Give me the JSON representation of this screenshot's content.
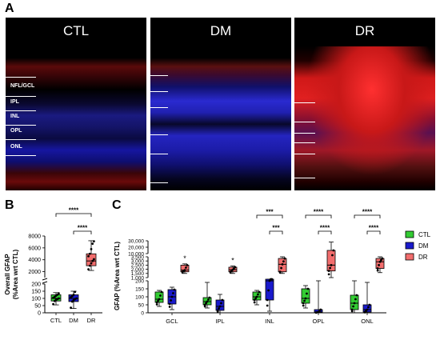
{
  "panel_a": {
    "letter": "A",
    "tiles": [
      {
        "title": "CTL",
        "layers": [
          "NFL/GCL",
          "IPL",
          "INL",
          "OPL",
          "ONL"
        ]
      },
      {
        "title": "DM"
      },
      {
        "title": "DR"
      }
    ]
  },
  "panel_b_letter": "B",
  "panel_c_letter": "C",
  "colors": {
    "CTL": "#33cc33",
    "DM": "#1a1acc",
    "DR": "#f26d6d"
  },
  "chart_data": [
    {
      "type": "box",
      "panel": "B",
      "ylabel": "Overall GFAP\n(%Area wrt CTL)",
      "categories": [
        "CTL",
        "DM",
        "DR"
      ],
      "axis_lower": {
        "range": [
          0,
          200
        ],
        "ticks": [
          "0",
          "50",
          "100",
          "150",
          "200"
        ]
      },
      "axis_upper": {
        "range": [
          1000,
          8000
        ],
        "ticks": [
          "2000",
          "4000",
          "6000",
          "8000"
        ]
      },
      "boxes": [
        {
          "group": "CTL",
          "min": 55,
          "q1": 82,
          "median": 100,
          "q3": 125,
          "max": 140,
          "points": [
            60,
            82,
            90,
            95,
            100,
            104,
            110,
            118,
            125,
            135
          ]
        },
        {
          "group": "DM",
          "min": 30,
          "q1": 78,
          "median": 100,
          "q3": 125,
          "max": 150,
          "points": [
            35,
            78,
            88,
            95,
            100,
            108,
            115,
            125,
            145
          ]
        },
        {
          "group": "DR",
          "min": 2200,
          "q1": 3000,
          "median": 3800,
          "q3": 5000,
          "max": 7200,
          "points": [
            2400,
            3000,
            3400,
            3800,
            4100,
            4600,
            5000,
            5800,
            6700,
            7100
          ]
        }
      ],
      "significance": [
        {
          "pair": [
            "CTL",
            "DR"
          ],
          "label": "****"
        },
        {
          "pair": [
            "DM",
            "DR"
          ],
          "label": "****"
        }
      ]
    },
    {
      "type": "box",
      "panel": "C",
      "ylabel": "GFAP (%Area wrt CTL)",
      "categories": [
        "GCL",
        "IPL",
        "INL",
        "OPL",
        "ONL"
      ],
      "axis_lower": {
        "range": [
          0,
          200
        ],
        "ticks": [
          "0",
          "50",
          "100",
          "150",
          "200"
        ]
      },
      "axis_mid": {
        "range": [
          1000,
          3500
        ],
        "ticks": [
          "1,000",
          "1,500",
          "2,000",
          "2,500",
          "3,000",
          "3,500"
        ]
      },
      "axis_upper": {
        "range": [
          10000,
          30000
        ],
        "ticks": [
          "10,000",
          "20,000",
          "30,000"
        ]
      },
      "legend": [
        "CTL",
        "DM",
        "DR"
      ],
      "legend_position": "right",
      "boxes": [
        {
          "layer": "GCL",
          "group": "CTL",
          "min": 40,
          "q1": 65,
          "median": 85,
          "q3": 130,
          "max": 140
        },
        {
          "layer": "GCL",
          "group": "DM",
          "min": 20,
          "q1": 55,
          "median": 100,
          "q3": 145,
          "max": 160
        },
        {
          "layer": "GCL",
          "group": "DR",
          "min": 1500,
          "q1": 1700,
          "median": 1900,
          "q3": 2500,
          "max": 2650,
          "outlier_label": "*"
        },
        {
          "layer": "IPL",
          "group": "CTL",
          "min": 30,
          "q1": 50,
          "median": 70,
          "q3": 95,
          "max": 190
        },
        {
          "layer": "IPL",
          "group": "DM",
          "min": 0,
          "q1": 15,
          "median": 40,
          "q3": 80,
          "max": 115
        },
        {
          "layer": "IPL",
          "group": "DR",
          "min": 1500,
          "q1": 1700,
          "median": 1950,
          "q3": 2250,
          "max": 2400,
          "outlier_label": "*"
        },
        {
          "layer": "INL",
          "group": "CTL",
          "min": 50,
          "q1": 80,
          "median": 100,
          "q3": 130,
          "max": 140
        },
        {
          "layer": "INL",
          "group": "DM",
          "min": 10,
          "q1": 80,
          "median": 200,
          "q3": 230,
          "max": 250
        },
        {
          "layer": "INL",
          "group": "DR",
          "min": 1500,
          "q1": 1700,
          "median": 2600,
          "q3": 3300,
          "max": 3500
        },
        {
          "layer": "OPL",
          "group": "CTL",
          "min": 30,
          "q1": 60,
          "median": 90,
          "q3": 150,
          "max": 170
        },
        {
          "layer": "OPL",
          "group": "DM",
          "min": 0,
          "q1": 2,
          "median": 5,
          "q3": 20,
          "max": 200
        },
        {
          "layer": "OPL",
          "group": "DR",
          "min": 1000,
          "q1": 1800,
          "median": 2500,
          "q3": 15000,
          "max": 28000
        },
        {
          "layer": "ONL",
          "group": "CTL",
          "min": 0,
          "q1": 20,
          "median": 60,
          "q3": 110,
          "max": 200
        },
        {
          "layer": "ONL",
          "group": "DM",
          "min": 0,
          "q1": 5,
          "median": 20,
          "q3": 50,
          "max": 190
        },
        {
          "layer": "ONL",
          "group": "DR",
          "min": 1600,
          "q1": 2100,
          "median": 2900,
          "q3": 3300,
          "max": 3500
        }
      ],
      "significance": [
        {
          "layer": "INL",
          "pair": [
            "CTL",
            "DR"
          ],
          "label": "***"
        },
        {
          "layer": "INL",
          "pair": [
            "DM",
            "DR"
          ],
          "label": "***"
        },
        {
          "layer": "OPL",
          "pair": [
            "CTL",
            "DR"
          ],
          "label": "****"
        },
        {
          "layer": "OPL",
          "pair": [
            "DM",
            "DR"
          ],
          "label": "****"
        },
        {
          "layer": "ONL",
          "pair": [
            "CTL",
            "DR"
          ],
          "label": "****"
        },
        {
          "layer": "ONL",
          "pair": [
            "DM",
            "DR"
          ],
          "label": "****"
        }
      ]
    }
  ]
}
